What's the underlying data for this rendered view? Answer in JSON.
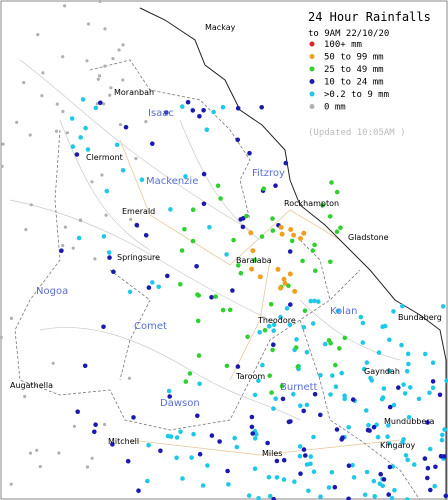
{
  "legend": {
    "title": "24 Hour Rainfalls",
    "subtitle": "to 9AM 22/10/20",
    "items": [
      {
        "label": "100+ mm",
        "color": "#e02020"
      },
      {
        "label": "50  to 99 mm",
        "color": "#f0a020"
      },
      {
        "label": "25  to 49 mm",
        "color": "#30d030"
      },
      {
        "label": "10  to 24 mm",
        "color": "#1a1ab0"
      },
      {
        "label": ">0.2 to 9 mm",
        "color": "#20c8e8"
      },
      {
        "label": "0 mm",
        "color": "#b0b0b0"
      }
    ],
    "updated": "(Updated 10:05AM  )"
  },
  "places": [
    "Mackay",
    "Moranbah",
    "Clermont",
    "Emerald",
    "Springsure",
    "Rockhampton",
    "Gladstone",
    "Baralaba",
    "Theodore",
    "Bundaberg",
    "Taroom",
    "Gayndah",
    "Augathella",
    "Mitchell",
    "Miles",
    "Mundubbera",
    "Kingaroy"
  ],
  "regions": [
    "Isaac",
    "Mackenzie",
    "Fitzroy",
    "Nogoa",
    "Comet",
    "Kolan",
    "Burnett",
    "Dawson"
  ]
}
